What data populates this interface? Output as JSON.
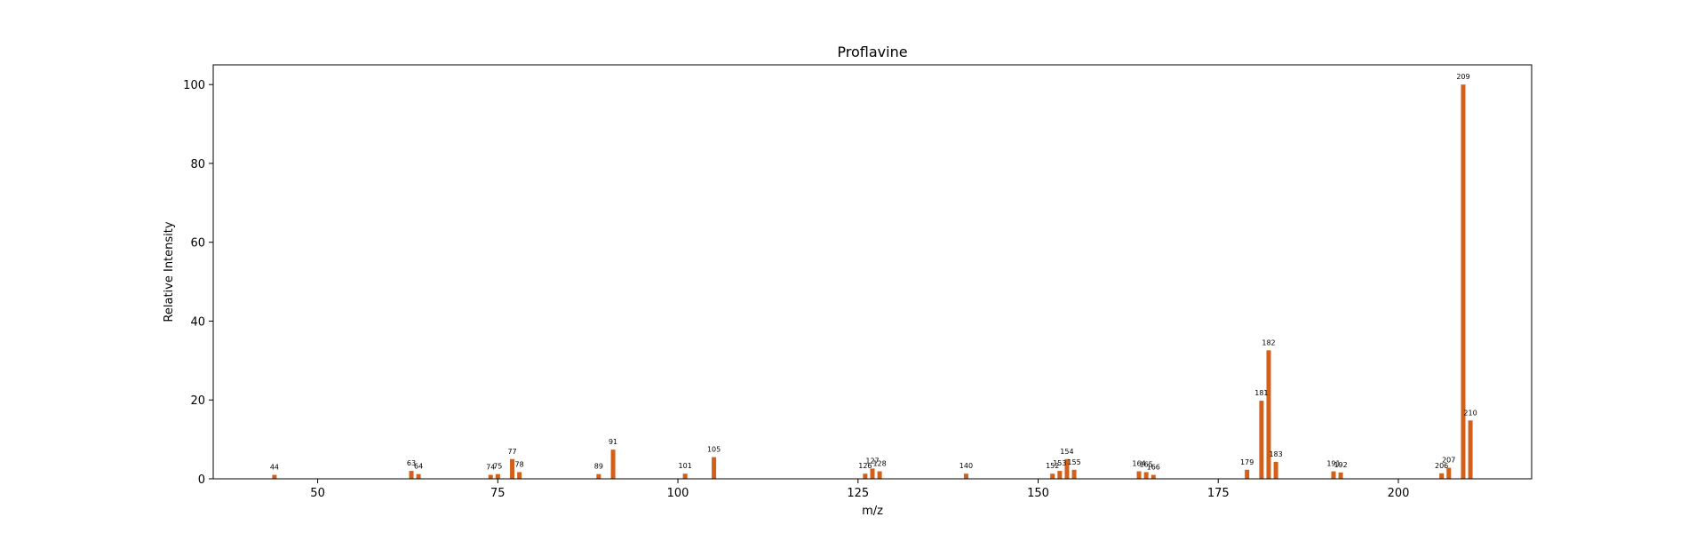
{
  "chart_data": {
    "type": "bar",
    "title": "Proflavine",
    "xlabel": "m/z",
    "ylabel": "Relative Intensity",
    "xlim": [
      35.5,
      218.5
    ],
    "ylim": [
      0,
      105
    ],
    "xticks": [
      50,
      75,
      100,
      125,
      150,
      175,
      200
    ],
    "yticks": [
      0,
      20,
      40,
      60,
      80,
      100
    ],
    "grid": false,
    "bar_color": "#d2601a",
    "bars": [
      {
        "x": 44,
        "y": 1.0,
        "label": "44"
      },
      {
        "x": 63,
        "y": 2.0,
        "label": "63"
      },
      {
        "x": 64,
        "y": 1.2,
        "label": "64"
      },
      {
        "x": 74,
        "y": 1.0,
        "label": "74"
      },
      {
        "x": 75,
        "y": 1.2,
        "label": "75"
      },
      {
        "x": 77,
        "y": 5.0,
        "label": "77"
      },
      {
        "x": 78,
        "y": 1.7,
        "label": "78"
      },
      {
        "x": 89,
        "y": 1.2,
        "label": "89"
      },
      {
        "x": 91,
        "y": 7.4,
        "label": "91"
      },
      {
        "x": 101,
        "y": 1.3,
        "label": "101"
      },
      {
        "x": 105,
        "y": 5.5,
        "label": "105"
      },
      {
        "x": 126,
        "y": 1.3,
        "label": "126"
      },
      {
        "x": 127,
        "y": 2.6,
        "label": "127"
      },
      {
        "x": 128,
        "y": 1.9,
        "label": "128"
      },
      {
        "x": 140,
        "y": 1.3,
        "label": "140"
      },
      {
        "x": 152,
        "y": 1.3,
        "label": "152"
      },
      {
        "x": 153,
        "y": 2.0,
        "label": "153"
      },
      {
        "x": 154,
        "y": 5.0,
        "label": "154"
      },
      {
        "x": 155,
        "y": 2.3,
        "label": "155"
      },
      {
        "x": 164,
        "y": 1.9,
        "label": "164"
      },
      {
        "x": 165,
        "y": 1.7,
        "label": "165"
      },
      {
        "x": 166,
        "y": 1.0,
        "label": "166"
      },
      {
        "x": 179,
        "y": 2.3,
        "label": "179"
      },
      {
        "x": 181,
        "y": 19.8,
        "label": "181"
      },
      {
        "x": 182,
        "y": 32.6,
        "label": "182"
      },
      {
        "x": 183,
        "y": 4.3,
        "label": "183"
      },
      {
        "x": 191,
        "y": 1.9,
        "label": "191"
      },
      {
        "x": 192,
        "y": 1.6,
        "label": "192"
      },
      {
        "x": 206,
        "y": 1.4,
        "label": "206"
      },
      {
        "x": 207,
        "y": 2.8,
        "label": "207"
      },
      {
        "x": 209,
        "y": 100.0,
        "label": "209"
      },
      {
        "x": 210,
        "y": 14.8,
        "label": "210"
      }
    ]
  }
}
